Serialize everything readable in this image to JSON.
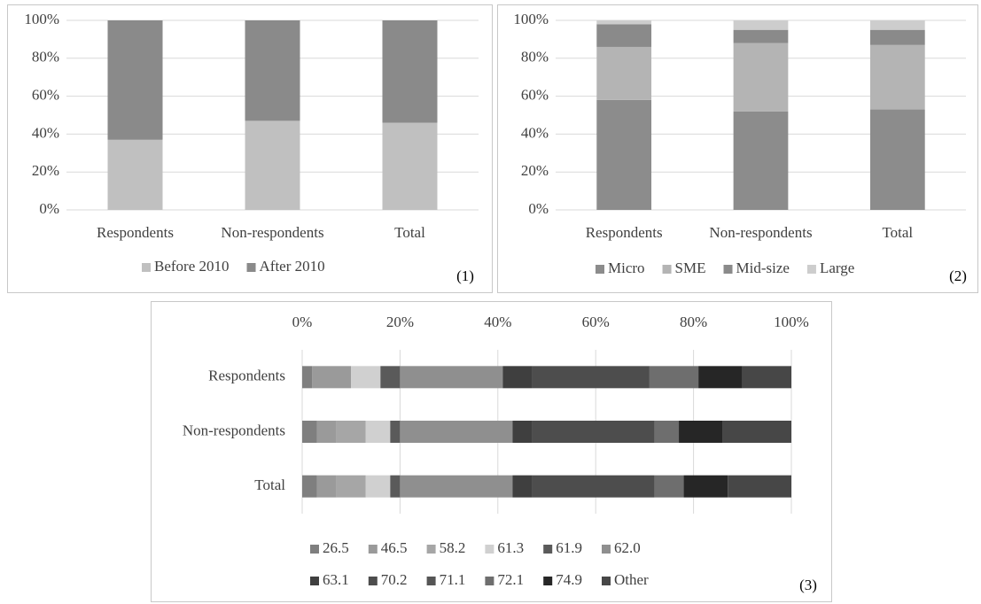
{
  "chart_data": [
    {
      "type": "bar",
      "stacked": true,
      "orientation": "vertical",
      "panel_label": "(1)",
      "categories": [
        "Respondents",
        "Non-respondents",
        "Total"
      ],
      "series": [
        {
          "name": "Before 2010",
          "color": "#c0c0c0",
          "values": [
            37,
            47,
            46
          ]
        },
        {
          "name": "After 2010",
          "color": "#8a8a8a",
          "values": [
            63,
            53,
            54
          ]
        }
      ],
      "ylim": [
        0,
        100
      ],
      "yticks": [
        {
          "value": 0,
          "label": "0%"
        },
        {
          "value": 20,
          "label": "20%"
        },
        {
          "value": 40,
          "label": "40%"
        },
        {
          "value": 60,
          "label": "60%"
        },
        {
          "value": 80,
          "label": "80%"
        },
        {
          "value": 100,
          "label": "100%"
        }
      ],
      "grid": true
    },
    {
      "type": "bar",
      "stacked": true,
      "orientation": "vertical",
      "panel_label": "(2)",
      "categories": [
        "Respondents",
        "Non-respondents",
        "Total"
      ],
      "series": [
        {
          "name": "Micro",
          "color": "#8c8c8c",
          "values": [
            58,
            52,
            53
          ]
        },
        {
          "name": "SME",
          "color": "#b4b4b4",
          "values": [
            28,
            36,
            34
          ]
        },
        {
          "name": "Mid-size",
          "color": "#8a8a8a",
          "values": [
            12,
            7,
            8
          ]
        },
        {
          "name": "Large",
          "color": "#cdcdcd",
          "values": [
            2,
            5,
            5
          ]
        }
      ],
      "ylim": [
        0,
        100
      ],
      "yticks": [
        {
          "value": 0,
          "label": "0%"
        },
        {
          "value": 20,
          "label": "20%"
        },
        {
          "value": 40,
          "label": "40%"
        },
        {
          "value": 60,
          "label": "60%"
        },
        {
          "value": 80,
          "label": "80%"
        },
        {
          "value": 100,
          "label": "100%"
        }
      ],
      "grid": true
    },
    {
      "type": "bar",
      "stacked": true,
      "orientation": "horizontal",
      "panel_label": "(3)",
      "categories": [
        "Respondents",
        "Non-respondents",
        "Total"
      ],
      "series": [
        {
          "name": "26.5",
          "color": "#7f7f7f",
          "values": [
            2,
            3,
            3
          ]
        },
        {
          "name": "46.5",
          "color": "#9a9a9a",
          "values": [
            8,
            4,
            4
          ]
        },
        {
          "name": "58.2",
          "color": "#a6a6a6",
          "values": [
            0,
            6,
            6
          ]
        },
        {
          "name": "61.3",
          "color": "#d0d0d0",
          "values": [
            6,
            5,
            5
          ]
        },
        {
          "name": "61.9",
          "color": "#5a5a5a",
          "values": [
            4,
            2,
            2
          ]
        },
        {
          "name": "62.0",
          "color": "#8f8f8f",
          "values": [
            21,
            23,
            23
          ]
        },
        {
          "name": "63.1",
          "color": "#3f3f3f",
          "values": [
            6,
            4,
            4
          ]
        },
        {
          "name": "70.2",
          "color": "#4d4d4d",
          "values": [
            24,
            25,
            25
          ]
        },
        {
          "name": "71.1",
          "color": "#555555",
          "values": [
            0,
            0,
            0
          ]
        },
        {
          "name": "72.1",
          "color": "#6e6e6e",
          "values": [
            10,
            5,
            6
          ]
        },
        {
          "name": "74.9",
          "color": "#262626",
          "values": [
            9,
            9,
            9
          ]
        },
        {
          "name": "Other",
          "color": "#474747",
          "values": [
            10,
            14,
            13
          ]
        }
      ],
      "xlim": [
        0,
        100
      ],
      "xticks": [
        {
          "value": 0,
          "label": "0%"
        },
        {
          "value": 20,
          "label": "20%"
        },
        {
          "value": 40,
          "label": "40%"
        },
        {
          "value": 60,
          "label": "60%"
        },
        {
          "value": 80,
          "label": "80%"
        },
        {
          "value": 100,
          "label": "100%"
        }
      ],
      "grid": true
    }
  ]
}
